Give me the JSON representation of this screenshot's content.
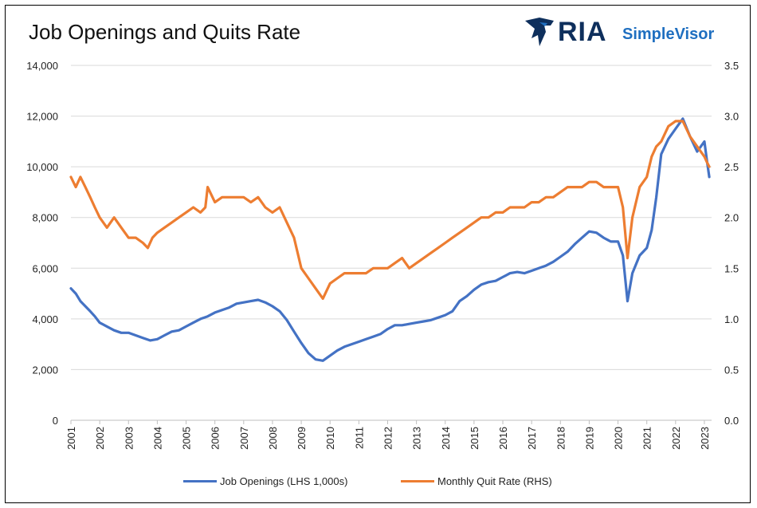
{
  "title": "Job Openings and Quits Rate",
  "logo": {
    "brand": "RIA",
    "product": "SimpleVisor"
  },
  "legend": [
    {
      "label": "Job Openings (LHS 1,000s)",
      "color": "#4472C4"
    },
    {
      "label": "Monthly Quit Rate (RHS)",
      "color": "#ED7D31"
    }
  ],
  "chart_data": {
    "type": "line",
    "title": "Job Openings and Quits Rate",
    "x_range": [
      2001.0,
      2023.25
    ],
    "x_ticks": [
      "2001",
      "2002",
      "2003",
      "2004",
      "2005",
      "2006",
      "2007",
      "2008",
      "2009",
      "2010",
      "2011",
      "2012",
      "2013",
      "2014",
      "2015",
      "2016",
      "2017",
      "2018",
      "2019",
      "2020",
      "2021",
      "2022",
      "2023"
    ],
    "y_left": {
      "range": [
        0,
        14000
      ],
      "ticks": [
        "0",
        "2,000",
        "4,000",
        "6,000",
        "8,000",
        "10,000",
        "12,000",
        "14,000"
      ]
    },
    "y_right": {
      "range": [
        0,
        3.5
      ],
      "ticks": [
        "0.0",
        "0.5",
        "1.0",
        "1.5",
        "2.0",
        "2.5",
        "3.0",
        "3.5"
      ]
    },
    "grid": "horizontal",
    "legend_position": "bottom",
    "series": [
      {
        "name": "Job Openings (LHS 1,000s)",
        "axis": "left",
        "color": "#4472C4",
        "points": [
          [
            2001.0,
            5200
          ],
          [
            2001.17,
            5000
          ],
          [
            2001.33,
            4700
          ],
          [
            2001.5,
            4500
          ],
          [
            2001.67,
            4300
          ],
          [
            2001.83,
            4100
          ],
          [
            2002.0,
            3850
          ],
          [
            2002.25,
            3700
          ],
          [
            2002.5,
            3550
          ],
          [
            2002.75,
            3450
          ],
          [
            2003.0,
            3450
          ],
          [
            2003.25,
            3350
          ],
          [
            2003.5,
            3250
          ],
          [
            2003.75,
            3150
          ],
          [
            2004.0,
            3200
          ],
          [
            2004.25,
            3350
          ],
          [
            2004.5,
            3500
          ],
          [
            2004.75,
            3550
          ],
          [
            2005.0,
            3700
          ],
          [
            2005.25,
            3850
          ],
          [
            2005.5,
            4000
          ],
          [
            2005.75,
            4100
          ],
          [
            2006.0,
            4250
          ],
          [
            2006.25,
            4350
          ],
          [
            2006.5,
            4450
          ],
          [
            2006.75,
            4600
          ],
          [
            2007.0,
            4650
          ],
          [
            2007.25,
            4700
          ],
          [
            2007.5,
            4750
          ],
          [
            2007.75,
            4650
          ],
          [
            2008.0,
            4500
          ],
          [
            2008.25,
            4300
          ],
          [
            2008.5,
            3950
          ],
          [
            2008.75,
            3500
          ],
          [
            2009.0,
            3050
          ],
          [
            2009.25,
            2650
          ],
          [
            2009.5,
            2400
          ],
          [
            2009.75,
            2350
          ],
          [
            2010.0,
            2550
          ],
          [
            2010.25,
            2750
          ],
          [
            2010.5,
            2900
          ],
          [
            2010.75,
            3000
          ],
          [
            2011.0,
            3100
          ],
          [
            2011.25,
            3200
          ],
          [
            2011.5,
            3300
          ],
          [
            2011.75,
            3400
          ],
          [
            2012.0,
            3600
          ],
          [
            2012.25,
            3750
          ],
          [
            2012.5,
            3750
          ],
          [
            2012.75,
            3800
          ],
          [
            2013.0,
            3850
          ],
          [
            2013.25,
            3900
          ],
          [
            2013.5,
            3950
          ],
          [
            2013.75,
            4050
          ],
          [
            2014.0,
            4150
          ],
          [
            2014.25,
            4300
          ],
          [
            2014.5,
            4700
          ],
          [
            2014.75,
            4900
          ],
          [
            2015.0,
            5150
          ],
          [
            2015.25,
            5350
          ],
          [
            2015.5,
            5450
          ],
          [
            2015.75,
            5500
          ],
          [
            2016.0,
            5650
          ],
          [
            2016.25,
            5800
          ],
          [
            2016.5,
            5850
          ],
          [
            2016.75,
            5800
          ],
          [
            2017.0,
            5900
          ],
          [
            2017.25,
            6000
          ],
          [
            2017.5,
            6100
          ],
          [
            2017.75,
            6250
          ],
          [
            2018.0,
            6450
          ],
          [
            2018.25,
            6650
          ],
          [
            2018.5,
            6950
          ],
          [
            2018.75,
            7200
          ],
          [
            2019.0,
            7450
          ],
          [
            2019.25,
            7400
          ],
          [
            2019.5,
            7200
          ],
          [
            2019.75,
            7050
          ],
          [
            2020.0,
            7050
          ],
          [
            2020.17,
            6500
          ],
          [
            2020.33,
            4700
          ],
          [
            2020.5,
            5800
          ],
          [
            2020.75,
            6500
          ],
          [
            2021.0,
            6800
          ],
          [
            2021.17,
            7500
          ],
          [
            2021.33,
            8800
          ],
          [
            2021.5,
            10500
          ],
          [
            2021.75,
            11100
          ],
          [
            2022.0,
            11500
          ],
          [
            2022.25,
            11900
          ],
          [
            2022.5,
            11200
          ],
          [
            2022.75,
            10600
          ],
          [
            2023.0,
            11000
          ],
          [
            2023.08,
            10300
          ],
          [
            2023.17,
            9600
          ]
        ]
      },
      {
        "name": "Monthly Quit Rate (RHS)",
        "axis": "right",
        "color": "#ED7D31",
        "points": [
          [
            2001.0,
            2.4
          ],
          [
            2001.17,
            2.3
          ],
          [
            2001.33,
            2.4
          ],
          [
            2001.5,
            2.3
          ],
          [
            2001.67,
            2.2
          ],
          [
            2001.83,
            2.1
          ],
          [
            2002.0,
            2.0
          ],
          [
            2002.25,
            1.9
          ],
          [
            2002.5,
            2.0
          ],
          [
            2002.75,
            1.9
          ],
          [
            2003.0,
            1.8
          ],
          [
            2003.25,
            1.8
          ],
          [
            2003.5,
            1.75
          ],
          [
            2003.67,
            1.7
          ],
          [
            2003.83,
            1.8
          ],
          [
            2004.0,
            1.85
          ],
          [
            2004.25,
            1.9
          ],
          [
            2004.5,
            1.95
          ],
          [
            2004.75,
            2.0
          ],
          [
            2005.0,
            2.05
          ],
          [
            2005.25,
            2.1
          ],
          [
            2005.5,
            2.05
          ],
          [
            2005.67,
            2.1
          ],
          [
            2005.75,
            2.3
          ],
          [
            2006.0,
            2.15
          ],
          [
            2006.25,
            2.2
          ],
          [
            2006.5,
            2.2
          ],
          [
            2006.75,
            2.2
          ],
          [
            2007.0,
            2.2
          ],
          [
            2007.25,
            2.15
          ],
          [
            2007.5,
            2.2
          ],
          [
            2007.75,
            2.1
          ],
          [
            2008.0,
            2.05
          ],
          [
            2008.25,
            2.1
          ],
          [
            2008.5,
            1.95
          ],
          [
            2008.75,
            1.8
          ],
          [
            2009.0,
            1.5
          ],
          [
            2009.25,
            1.4
          ],
          [
            2009.5,
            1.3
          ],
          [
            2009.75,
            1.2
          ],
          [
            2010.0,
            1.35
          ],
          [
            2010.25,
            1.4
          ],
          [
            2010.5,
            1.45
          ],
          [
            2010.75,
            1.45
          ],
          [
            2011.0,
            1.45
          ],
          [
            2011.25,
            1.45
          ],
          [
            2011.5,
            1.5
          ],
          [
            2011.75,
            1.5
          ],
          [
            2012.0,
            1.5
          ],
          [
            2012.25,
            1.55
          ],
          [
            2012.5,
            1.6
          ],
          [
            2012.75,
            1.5
          ],
          [
            2013.0,
            1.55
          ],
          [
            2013.25,
            1.6
          ],
          [
            2013.5,
            1.65
          ],
          [
            2013.75,
            1.7
          ],
          [
            2014.0,
            1.75
          ],
          [
            2014.25,
            1.8
          ],
          [
            2014.5,
            1.85
          ],
          [
            2014.75,
            1.9
          ],
          [
            2015.0,
            1.95
          ],
          [
            2015.25,
            2.0
          ],
          [
            2015.5,
            2.0
          ],
          [
            2015.75,
            2.05
          ],
          [
            2016.0,
            2.05
          ],
          [
            2016.25,
            2.1
          ],
          [
            2016.5,
            2.1
          ],
          [
            2016.75,
            2.1
          ],
          [
            2017.0,
            2.15
          ],
          [
            2017.25,
            2.15
          ],
          [
            2017.5,
            2.2
          ],
          [
            2017.75,
            2.2
          ],
          [
            2018.0,
            2.25
          ],
          [
            2018.25,
            2.3
          ],
          [
            2018.5,
            2.3
          ],
          [
            2018.75,
            2.3
          ],
          [
            2019.0,
            2.35
          ],
          [
            2019.25,
            2.35
          ],
          [
            2019.5,
            2.3
          ],
          [
            2019.75,
            2.3
          ],
          [
            2020.0,
            2.3
          ],
          [
            2020.17,
            2.1
          ],
          [
            2020.33,
            1.6
          ],
          [
            2020.5,
            2.0
          ],
          [
            2020.75,
            2.3
          ],
          [
            2021.0,
            2.4
          ],
          [
            2021.17,
            2.6
          ],
          [
            2021.33,
            2.7
          ],
          [
            2021.5,
            2.75
          ],
          [
            2021.75,
            2.9
          ],
          [
            2022.0,
            2.95
          ],
          [
            2022.25,
            2.95
          ],
          [
            2022.5,
            2.8
          ],
          [
            2022.75,
            2.7
          ],
          [
            2023.0,
            2.6
          ],
          [
            2023.08,
            2.55
          ],
          [
            2023.17,
            2.5
          ]
        ]
      }
    ]
  }
}
